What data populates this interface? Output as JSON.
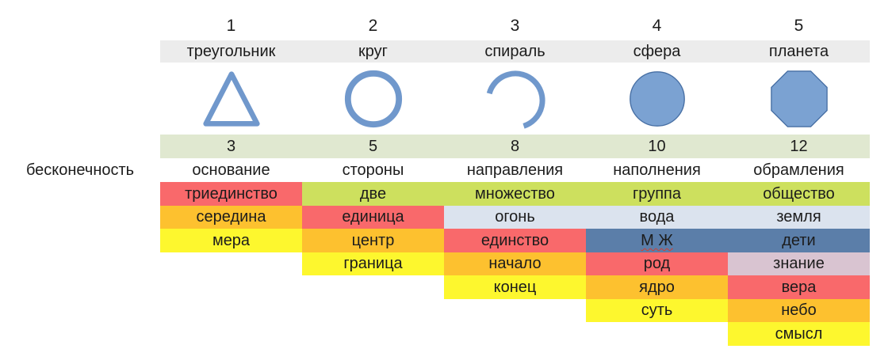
{
  "left_label": "бесконечность",
  "columns": [
    {
      "number": "1",
      "name": "треугольник",
      "shape": "triangle",
      "count": "3",
      "base": "основание"
    },
    {
      "number": "2",
      "name": "круг",
      "shape": "circle",
      "count": "5",
      "base": "стороны"
    },
    {
      "number": "3",
      "name": "спираль",
      "shape": "spiral",
      "count": "8",
      "base": "направления"
    },
    {
      "number": "4",
      "name": "сфера",
      "shape": "sphere",
      "count": "10",
      "base": "наполнения"
    },
    {
      "number": "5",
      "name": "планета",
      "shape": "planet",
      "count": "12",
      "base": "обрамления"
    }
  ],
  "matrix_rows": [
    [
      {
        "text": "триединство",
        "color": "red"
      },
      {
        "text": "две",
        "color": "green"
      },
      {
        "text": "множество",
        "color": "green"
      },
      {
        "text": "группа",
        "color": "green"
      },
      {
        "text": "общество",
        "color": "green"
      }
    ],
    [
      {
        "text": "середина",
        "color": "orange"
      },
      {
        "text": "единица",
        "color": "red"
      },
      {
        "text": "огонь",
        "color": "lightblue"
      },
      {
        "text": "вода",
        "color": "lightblue"
      },
      {
        "text": "земля",
        "color": "lightblue"
      }
    ],
    [
      {
        "text": "мера",
        "color": "yellow"
      },
      {
        "text": "центр",
        "color": "orange"
      },
      {
        "text": "единство",
        "color": "red"
      },
      {
        "text": "М Ж",
        "color": "steelblue",
        "misspelled": true
      },
      {
        "text": "дети",
        "color": "steelblue"
      }
    ],
    [
      null,
      {
        "text": "граница",
        "color": "yellow"
      },
      {
        "text": "начало",
        "color": "orange"
      },
      {
        "text": "род",
        "color": "red"
      },
      {
        "text": "знание",
        "color": "mauve"
      }
    ],
    [
      null,
      null,
      {
        "text": "конец",
        "color": "yellow"
      },
      {
        "text": "ядро",
        "color": "orange"
      },
      {
        "text": "вера",
        "color": "red"
      }
    ],
    [
      null,
      null,
      null,
      {
        "text": "суть",
        "color": "yellow"
      },
      {
        "text": "небо",
        "color": "orange"
      }
    ],
    [
      null,
      null,
      null,
      null,
      {
        "text": "смысл",
        "color": "yellow"
      }
    ]
  ],
  "palette": {
    "red": "#f9696b",
    "orange": "#fdc12f",
    "yellow": "#fdf72e",
    "green": "#cde05e",
    "lightblue": "#dbe3ee",
    "steelblue": "#5b7ea9",
    "mauve": "#d9c4d1",
    "header_gray": "#ececec",
    "pale_green": "#e0e8d0",
    "shape_stroke": "#7098cc",
    "shape_fill": "#7ba2d2",
    "shape_edge": "#476fa4",
    "misspell_underline": "#d23f31"
  }
}
